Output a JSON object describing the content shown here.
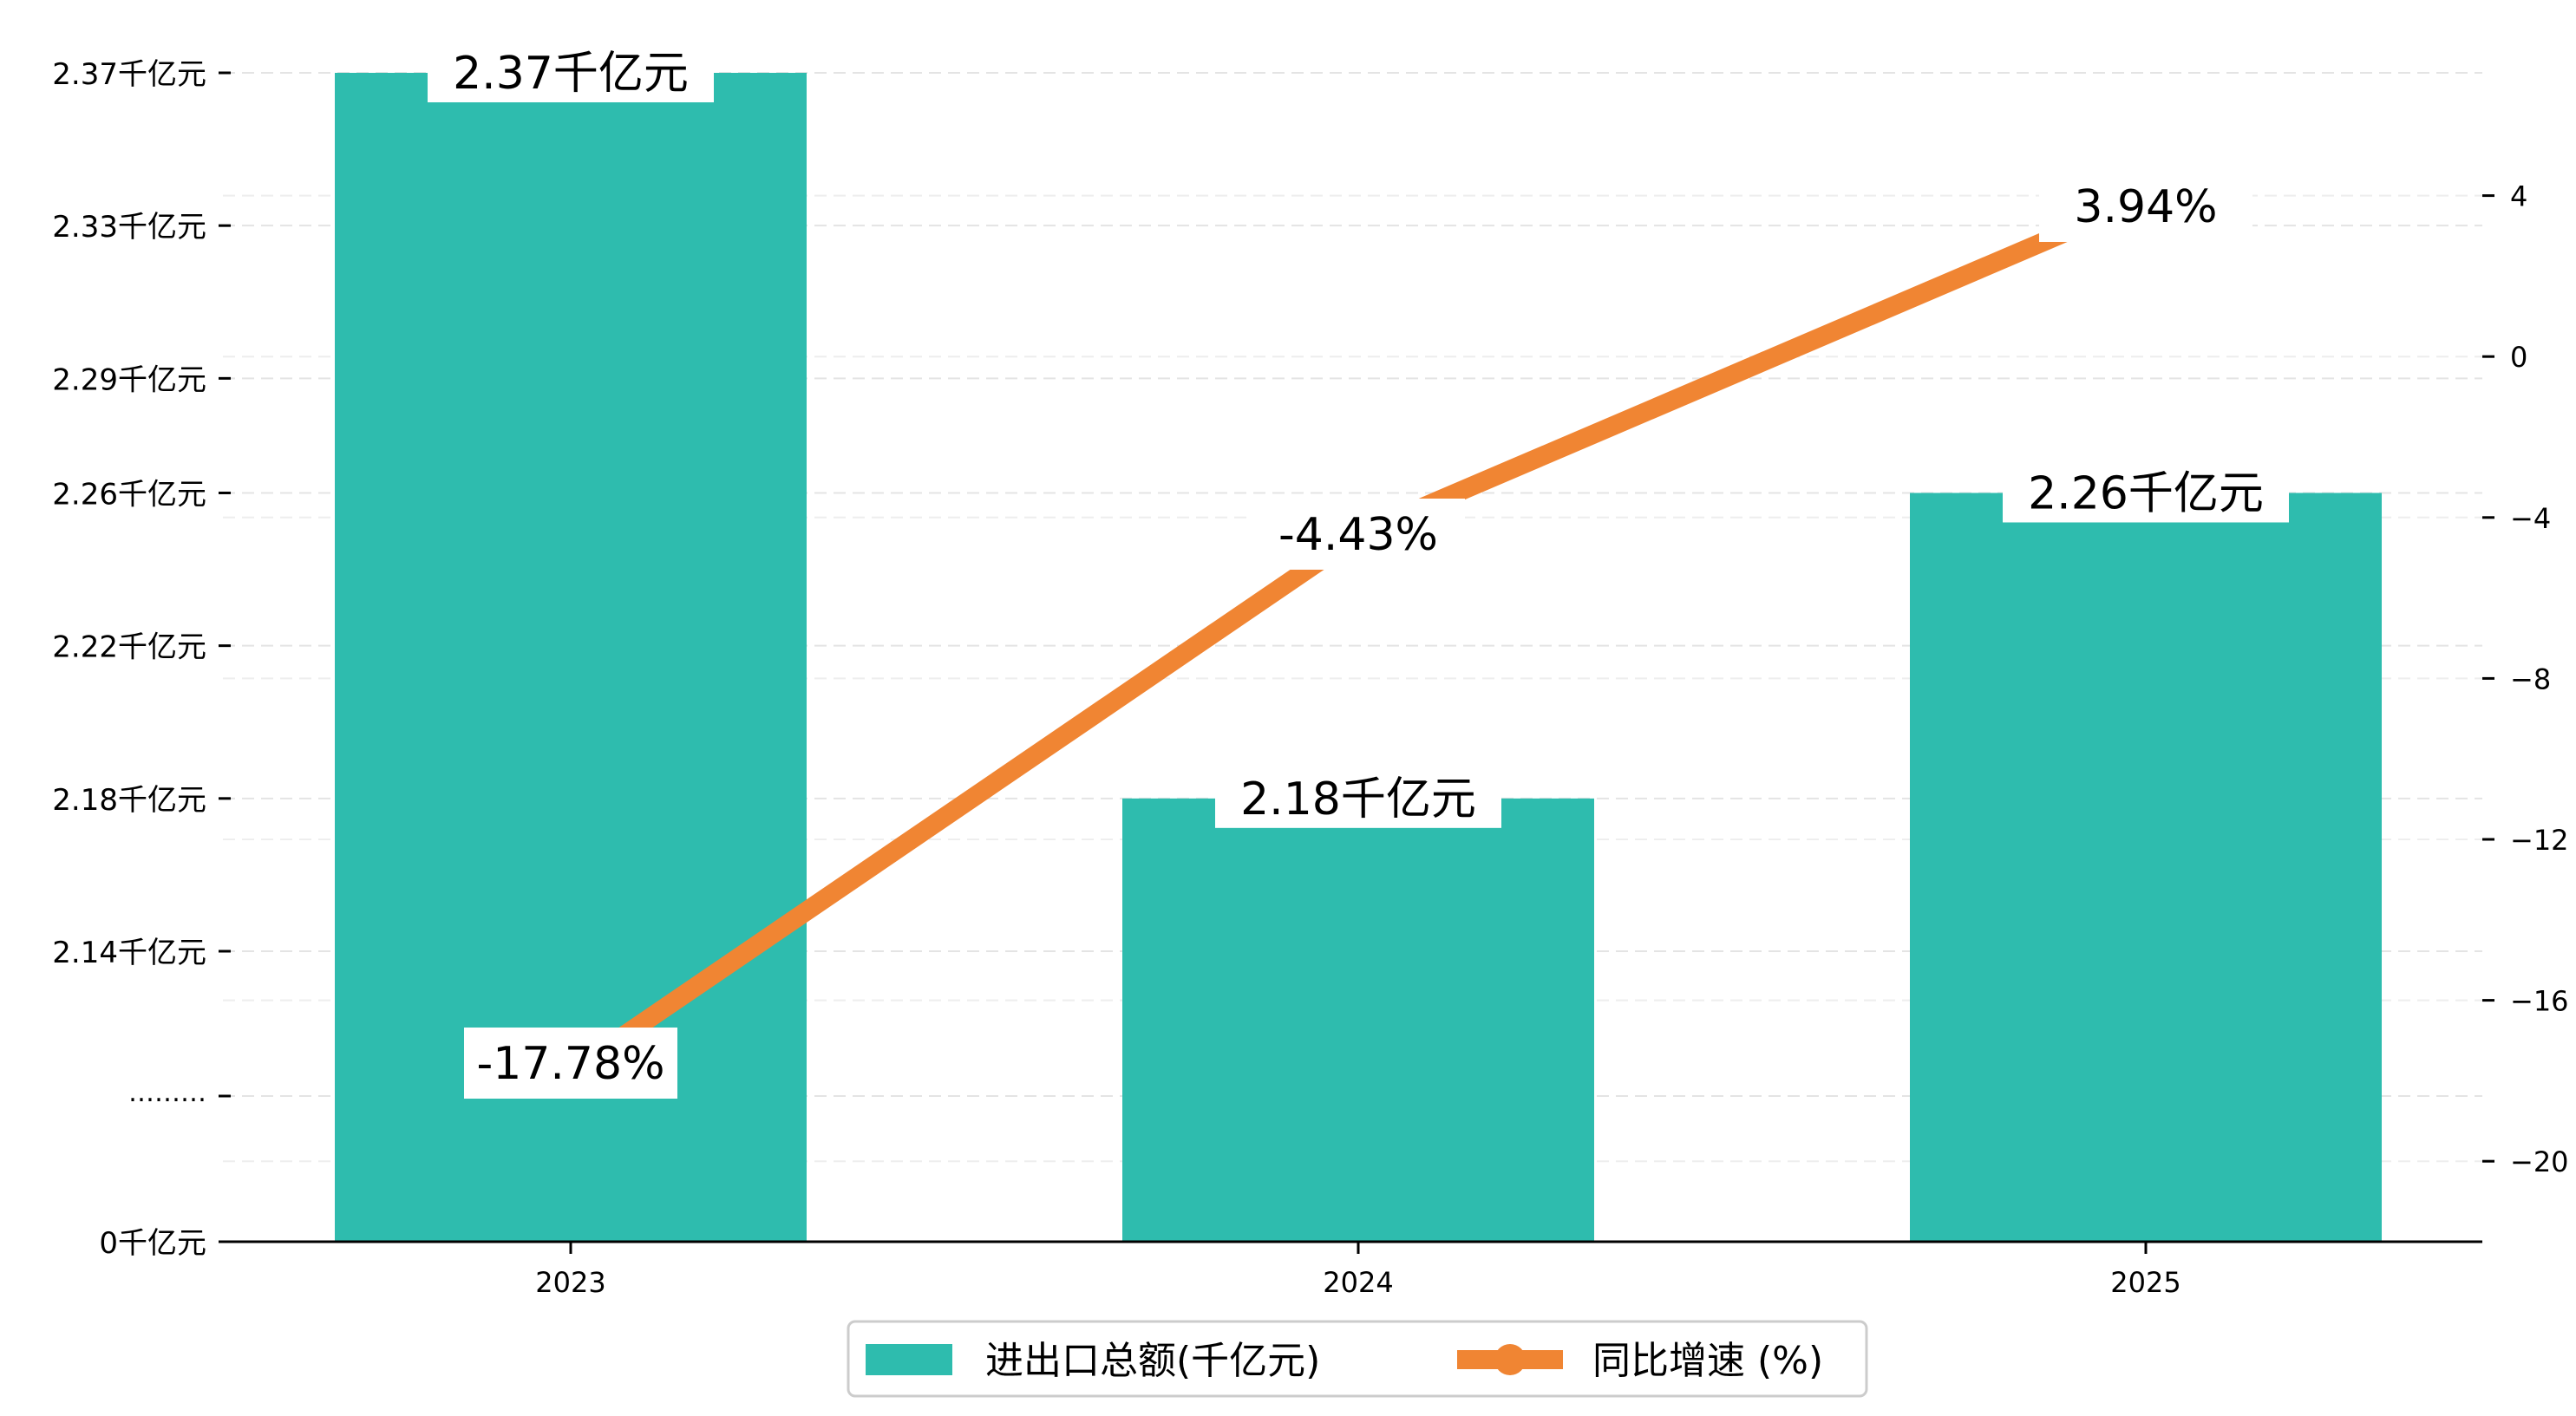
{
  "chart_data": {
    "type": "bar+line",
    "categories": [
      "2023",
      "2024",
      "2025"
    ],
    "series": [
      {
        "name": "进出口总额(千亿元)",
        "type": "bar",
        "axis": "left",
        "values": [
          2.37,
          2.18,
          2.26
        ],
        "value_labels": [
          "2.37千亿元",
          "2.18千亿元",
          "2.26千亿元"
        ],
        "color": "#2ebcae"
      },
      {
        "name": "同比增速 (%)",
        "type": "line",
        "axis": "right",
        "values": [
          -17.78,
          -4.43,
          3.94
        ],
        "value_labels": [
          "-17.78%",
          "-4.43%",
          "3.94%"
        ],
        "color": "#f08533"
      }
    ],
    "left_axis": {
      "break": true,
      "break_label": "………",
      "ticks": [
        {
          "value": 0,
          "label": "0千亿元"
        },
        {
          "value": 2.14,
          "label": "2.14千亿元"
        },
        {
          "value": 2.18,
          "label": "2.18千亿元"
        },
        {
          "value": 2.22,
          "label": "2.22千亿元"
        },
        {
          "value": 2.26,
          "label": "2.26千亿元"
        },
        {
          "value": 2.29,
          "label": "2.29千亿元"
        },
        {
          "value": 2.33,
          "label": "2.33千亿元"
        },
        {
          "value": 2.37,
          "label": "2.37千亿元"
        }
      ]
    },
    "right_axis": {
      "ylim": [
        -22,
        8
      ],
      "ticks": [
        -20,
        -16,
        -12,
        -8,
        -4,
        0,
        4
      ],
      "tick_labels": [
        "−20",
        "−16",
        "−12",
        "−8",
        "−4",
        "0",
        "4"
      ]
    },
    "grid": "horizontal-dashed",
    "legend": {
      "placement": "bottom-center",
      "entries": [
        "进出口总额(千亿元)",
        "同比增速 (%)"
      ]
    }
  }
}
